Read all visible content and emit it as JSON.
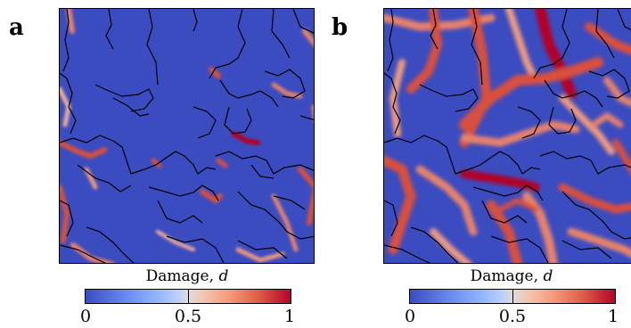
{
  "panels": [
    {
      "label": "a",
      "colorbar_title": "Damage, ",
      "colorbar_var": "d",
      "ticks": [
        "0",
        "0.5",
        "1"
      ]
    },
    {
      "label": "b",
      "colorbar_title": "Damage, ",
      "colorbar_var": "d",
      "ticks": [
        "0",
        "0.5",
        "1"
      ]
    }
  ],
  "colors": {
    "low": "#3b4cc0",
    "mid": "#dddcdc",
    "high": "#b40426",
    "boundary": "#000000"
  },
  "colorbar_range": [
    0,
    1
  ]
}
